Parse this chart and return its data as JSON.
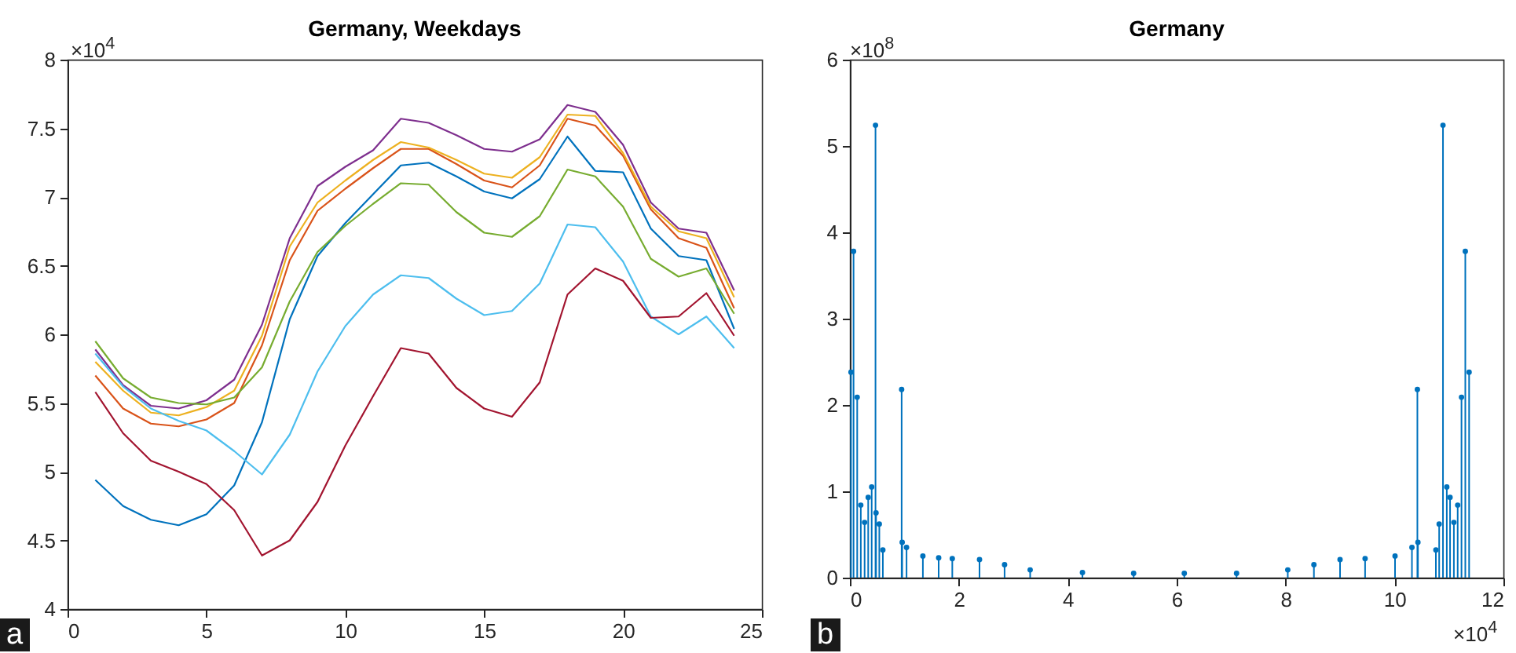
{
  "chart_data": [
    {
      "type": "line",
      "title": "Germany, Weekdays",
      "x": [
        1,
        2,
        3,
        4,
        5,
        6,
        7,
        8,
        9,
        10,
        11,
        12,
        13,
        14,
        15,
        16,
        17,
        18,
        19,
        20,
        21,
        22,
        23,
        24
      ],
      "series": [
        {
          "color": "#0072bd",
          "values": [
            4.94,
            4.75,
            4.65,
            4.61,
            4.69,
            4.9,
            5.36,
            6.11,
            6.57,
            6.81,
            7.02,
            7.23,
            7.25,
            7.15,
            7.04,
            6.99,
            7.13,
            7.44,
            7.19,
            7.18,
            6.77,
            6.57,
            6.54,
            6.04
          ]
        },
        {
          "color": "#d95319",
          "values": [
            5.7,
            5.46,
            5.35,
            5.33,
            5.38,
            5.5,
            5.92,
            6.54,
            6.9,
            7.06,
            7.21,
            7.35,
            7.35,
            7.24,
            7.12,
            7.07,
            7.23,
            7.57,
            7.52,
            7.3,
            6.91,
            6.7,
            6.63,
            6.19
          ]
        },
        {
          "color": "#edb120",
          "values": [
            5.8,
            5.59,
            5.43,
            5.41,
            5.47,
            5.59,
            5.99,
            6.64,
            6.96,
            7.12,
            7.27,
            7.4,
            7.36,
            7.27,
            7.17,
            7.14,
            7.29,
            7.6,
            7.59,
            7.32,
            6.93,
            6.75,
            6.7,
            6.27
          ]
        },
        {
          "color": "#7e2f8e",
          "values": [
            5.89,
            5.63,
            5.48,
            5.46,
            5.52,
            5.67,
            6.07,
            6.7,
            7.08,
            7.22,
            7.34,
            7.57,
            7.54,
            7.45,
            7.35,
            7.33,
            7.42,
            7.67,
            7.62,
            7.38,
            6.96,
            6.77,
            6.74,
            6.32
          ]
        },
        {
          "color": "#77ac30",
          "values": [
            5.95,
            5.68,
            5.54,
            5.5,
            5.49,
            5.54,
            5.76,
            6.24,
            6.6,
            6.79,
            6.95,
            7.1,
            7.09,
            6.89,
            6.74,
            6.71,
            6.86,
            7.2,
            7.15,
            6.93,
            6.55,
            6.42,
            6.48,
            6.15
          ]
        },
        {
          "color": "#4dbeee",
          "values": [
            5.86,
            5.62,
            5.46,
            5.37,
            5.3,
            5.15,
            4.98,
            5.27,
            5.73,
            6.06,
            6.29,
            6.43,
            6.41,
            6.26,
            6.14,
            6.17,
            6.37,
            6.8,
            6.78,
            6.53,
            6.13,
            6.0,
            6.13,
            5.9
          ]
        },
        {
          "color": "#a2142f",
          "values": [
            5.58,
            5.28,
            5.08,
            5.0,
            4.91,
            4.72,
            4.39,
            4.5,
            4.78,
            5.19,
            5.55,
            5.9,
            5.86,
            5.61,
            5.46,
            5.4,
            5.65,
            6.29,
            6.48,
            6.39,
            6.12,
            6.13,
            6.3,
            5.99
          ]
        }
      ],
      "xlim": [
        0,
        25
      ],
      "xticks": [
        0,
        5,
        10,
        15,
        20,
        25
      ],
      "ylim": [
        4,
        8
      ],
      "yticks": [
        4,
        4.5,
        5,
        5.5,
        6,
        6.5,
        7,
        7.5,
        8
      ],
      "annotations": [
        "a",
        "×10$^{4}$"
      ]
    },
    {
      "type": "lollipop",
      "title": "Germany",
      "marker": "circle",
      "x": [
        0.02,
        0.067,
        0.134,
        0.2,
        0.27,
        0.336,
        0.4,
        0.47,
        0.48,
        0.54,
        0.605,
        0.95,
        0.96,
        1.04,
        1.34,
        1.63,
        1.88,
        2.38,
        2.84,
        3.31,
        4.27,
        5.21,
        6.14,
        7.1,
        8.04,
        8.52,
        9.0,
        9.46,
        10.01,
        10.32,
        10.42,
        10.43,
        10.76,
        10.82,
        10.89,
        10.96,
        11.02,
        11.09,
        11.16,
        11.23,
        11.3,
        11.37
      ],
      "series": [
        {
          "color": "#0072bd",
          "values": [
            2.38,
            3.78,
            2.09,
            0.84,
            0.64,
            0.93,
            1.05,
            5.24,
            0.75,
            0.62,
            0.32,
            2.18,
            0.41,
            0.35,
            0.25,
            0.23,
            0.22,
            0.21,
            0.15,
            0.09,
            0.06,
            0.05,
            0.05,
            0.05,
            0.09,
            0.15,
            0.21,
            0.22,
            0.25,
            0.35,
            2.18,
            0.41,
            0.32,
            0.62,
            5.24,
            1.05,
            0.93,
            0.64,
            0.84,
            2.09,
            3.78,
            2.38
          ]
        }
      ],
      "xlim": [
        0,
        12
      ],
      "xticks": [
        0,
        2,
        4,
        6,
        8,
        10,
        12
      ],
      "ylim": [
        0,
        6
      ],
      "yticks": [
        0,
        1,
        2,
        3,
        4,
        5,
        6
      ],
      "annotations": [
        "b",
        "×10$^{8}$",
        "×10$^{4}$"
      ]
    }
  ]
}
